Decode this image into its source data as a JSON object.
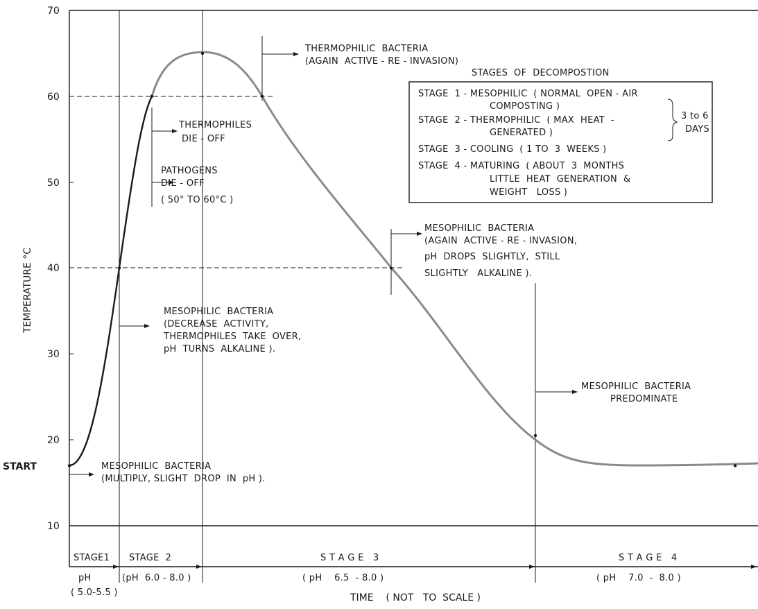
{
  "chart_data": {
    "type": "line",
    "title": "",
    "xlabel": "TIME    ( NOT   TO  SCALE )",
    "ylabel": "TEMPERATURE  °C",
    "ylim": [
      5,
      70
    ],
    "yticks": [
      "70",
      "60",
      "50",
      "40",
      "30",
      "20",
      "10"
    ],
    "ytick_values": [
      70,
      60,
      50,
      40,
      30,
      20,
      10
    ],
    "start_label": "START",
    "x_scale_note": "not to scale",
    "series": [
      {
        "values": [
          {
            "time": "start",
            "temp": 17
          },
          {
            "time": "end of stage 1",
            "temp": 40
          },
          {
            "time": "stage 2",
            "temp": 60
          },
          {
            "time": "peak",
            "temp": 65
          },
          {
            "time": "stage 3",
            "temp": 60
          },
          {
            "time": "stage 3",
            "temp": 40
          },
          {
            "time": "start of stage 4",
            "temp": 20.5
          },
          {
            "time": "stage 4",
            "temp": 17
          }
        ]
      }
    ],
    "reference_lines": [
      60,
      40
    ],
    "annotations": [
      {
        "id": "meso-multiply",
        "lines": [
          "MESOPHILIC  BACTERIA",
          "(MULTIPLY, SLIGHT  DROP  IN  pH )."
        ]
      },
      {
        "id": "meso-decrease",
        "lines": [
          "MESOPHILIC  BACTERIA",
          "(DECREASE  ACTIVITY,",
          "THERMOPHILES  TAKE  OVER,",
          "pH  TURNS  ALKALINE )."
        ]
      },
      {
        "id": "pathogens",
        "lines": [
          "PATHOGENS",
          "DIE - OFF",
          "( 50° TO 60°C )"
        ]
      },
      {
        "id": "thermophiles",
        "lines": [
          "THERMOPHILES",
          "DIE - OFF"
        ]
      },
      {
        "id": "thermo-bacteria",
        "lines": [
          "THERMOPHILIC  BACTERIA",
          "(AGAIN  ACTIVE - RE - INVASION)"
        ]
      },
      {
        "id": "meso-again",
        "lines": [
          "MESOPHILIC  BACTERIA",
          "(AGAIN  ACTIVE - RE - INVASION,",
          "pH  DROPS  SLIGHTLY,  STILL",
          "SLIGHTLY   ALKALINE )."
        ]
      },
      {
        "id": "meso-predominate",
        "lines": [
          "MESOPHILIC  BACTERIA",
          "PREDOMINATE"
        ]
      }
    ],
    "stages": [
      {
        "label": "STAGE1",
        "ph": [
          "pH",
          "( 5.0-5.5 )"
        ]
      },
      {
        "label": "STAGE  2",
        "ph": [
          "(pH  6.0 - 8.0 )"
        ]
      },
      {
        "label": "S T A G E   3",
        "ph": [
          "( pH    6.5  - 8.0 )"
        ]
      },
      {
        "label": "S T A G E   4",
        "ph": [
          "( pH    7.0  -  8.0 )"
        ]
      }
    ],
    "legend": {
      "title": "STAGES  OF  DECOMPOSTION",
      "lines": [
        "STAGE  1 - MESOPHILIC  ( NORMAL  OPEN - AIR",
        "COMPOSTING )",
        "STAGE  2 - THERMOPHILIC  ( MAX  HEAT  -",
        "GENERATED )",
        "STAGE  3 - COOLING  ( 1 TO  3  WEEKS )",
        "STAGE  4 - MATURING  ( ABOUT  3  MONTHS",
        "LITTLE  HEAT  GENERATION  &",
        "WEIGHT   LOSS )"
      ],
      "duration": [
        "3 to 6",
        "DAYS"
      ]
    }
  }
}
